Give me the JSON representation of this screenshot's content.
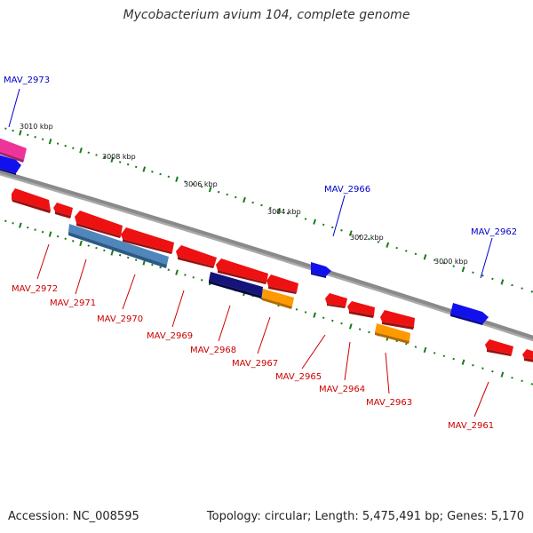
{
  "title": "Mycobacterium avium 104, complete genome",
  "accession": "Accession: NC_008595",
  "topology": "Topology: circular; Length: 5,475,491 bp; Genes: 5,170",
  "ticks": [
    "3010 kbp",
    "3008 kbp",
    "3006 kbp",
    "3004 kbp",
    "3002 kbp",
    "3000 kbp"
  ],
  "genes_plus": [
    "MAV_2973",
    "MAV_2966",
    "MAV_2962"
  ],
  "genes_minus": [
    "MAV_2972",
    "MAV_2971",
    "MAV_2970",
    "MAV_2969",
    "MAV_2968",
    "MAV_2967",
    "MAV_2965",
    "MAV_2964",
    "MAV_2963",
    "MAV_2961"
  ],
  "colors": {
    "plus_label": "#0000cc",
    "minus_label": "#cc0000",
    "backbone": "#8a8a8a",
    "tick": "#1a7a1a",
    "gene_red": "#ee1111",
    "gene_blue": "#1111ee",
    "gene_pink": "#ee3399",
    "gene_steel": "#4f86bb",
    "gene_navy": "#14147a",
    "gene_orange": "#ff9900"
  }
}
